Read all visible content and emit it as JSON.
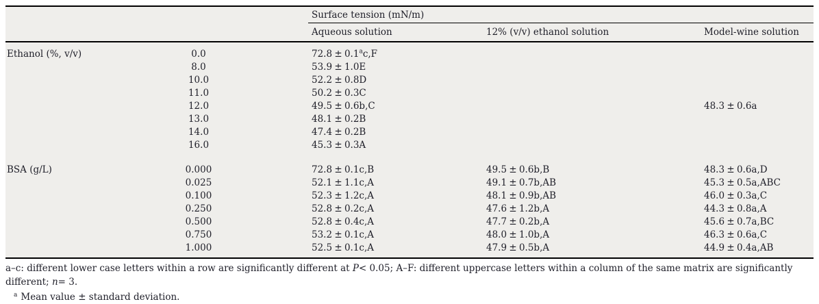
{
  "table": {
    "header": {
      "group_label": "Surface tension (mN/m)",
      "columns": [
        "Aqueous solution",
        "12% (v/v) ethanol solution",
        "Model-wine solution"
      ]
    },
    "row_groups": [
      {
        "label": "Ethanol (%, v/v)",
        "rows": [
          {
            "level": "0.0",
            "aqueous": "72.8 ± 0.1^a^c,F",
            "ethanol12": "",
            "model_wine": ""
          },
          {
            "level": "8.0",
            "aqueous": "53.9 ± 1.0E",
            "ethanol12": "",
            "model_wine": ""
          },
          {
            "level": "10.0",
            "aqueous": "52.2 ± 0.8D",
            "ethanol12": "",
            "model_wine": ""
          },
          {
            "level": "11.0",
            "aqueous": "50.2 ± 0.3C",
            "ethanol12": "",
            "model_wine": ""
          },
          {
            "level": "12.0",
            "aqueous": "49.5 ± 0.6b,C",
            "ethanol12": "",
            "model_wine": "48.3 ± 0.6a"
          },
          {
            "level": "13.0",
            "aqueous": "48.1 ± 0.2B",
            "ethanol12": "",
            "model_wine": ""
          },
          {
            "level": "14.0",
            "aqueous": "47.4 ± 0.2B",
            "ethanol12": "",
            "model_wine": ""
          },
          {
            "level": "16.0",
            "aqueous": "45.3 ± 0.3A",
            "ethanol12": "",
            "model_wine": ""
          }
        ]
      },
      {
        "label": "BSA (g/L)",
        "rows": [
          {
            "level": "0.000",
            "aqueous": "72.8 ± 0.1c,B",
            "ethanol12": "49.5 ± 0.6b,B",
            "model_wine": "48.3 ± 0.6a,D"
          },
          {
            "level": "0.025",
            "aqueous": "52.1 ± 1.1c,A",
            "ethanol12": "49.1 ± 0.7b,AB",
            "model_wine": "45.3 ± 0.5a,ABC"
          },
          {
            "level": "0.100",
            "aqueous": "52.3 ± 1.2c,A",
            "ethanol12": "48.1 ± 0.9b,AB",
            "model_wine": "46.0 ± 0.3a,C"
          },
          {
            "level": "0.250",
            "aqueous": "52.8 ± 0.2c,A",
            "ethanol12": "47.6 ± 1.2b,A",
            "model_wine": "44.3 ± 0.8a,A"
          },
          {
            "level": "0.500",
            "aqueous": "52.8 ± 0.4c,A",
            "ethanol12": "47.7 ± 0.2b,A",
            "model_wine": "45.6 ± 0.7a,BC"
          },
          {
            "level": "0.750",
            "aqueous": "53.2 ± 0.1c,A",
            "ethanol12": "48.0 ± 1.0b,A",
            "model_wine": "46.3 ± 0.6a,C"
          },
          {
            "level": "1.000",
            "aqueous": "52.5 ± 0.1c,A",
            "ethanol12": "47.9 ± 0.5b,A",
            "model_wine": "44.9 ± 0.4a,AB"
          }
        ]
      }
    ]
  },
  "footnotes": {
    "sig_parts": {
      "part1": "a–c: different lower case letters within a row are significantly different at ",
      "p_symbol": "P",
      "part2": "< 0.05; A–F: different uppercase letters within a column of the same matrix are significantly different; ",
      "n_symbol": "n",
      "part3": "= 3."
    },
    "mean": {
      "marker": "a",
      "text": "Mean value ± standard deviation."
    }
  },
  "colors": {
    "table_background": "#efeeeb",
    "rule": "#000000",
    "text": "#1e1e28"
  }
}
